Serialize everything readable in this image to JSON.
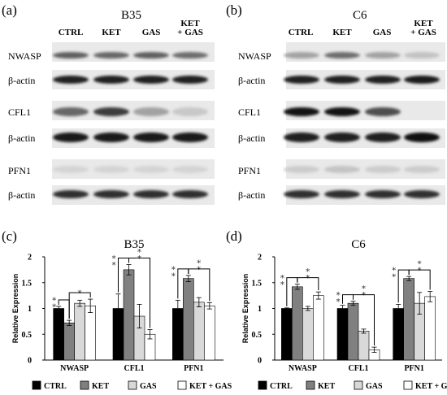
{
  "panels": {
    "a": {
      "letter": "(a)",
      "cell": "B35",
      "lanes": [
        "CTRL",
        "KET",
        "GAS",
        "KET\n+ GAS"
      ]
    },
    "b": {
      "letter": "(b)",
      "cell": "C6",
      "lanes": [
        "CTRL",
        "KET",
        "GAS",
        "KET\n+ GAS"
      ]
    },
    "c": {
      "letter": "(c)"
    },
    "d": {
      "letter": "(d)"
    }
  },
  "blot_rows": [
    "NWASP",
    "β-actin",
    "CFL1",
    "β-actin",
    "PFN1",
    "β-actin"
  ],
  "blot_bands": {
    "B35": [
      [
        0.62,
        0.58,
        0.62,
        0.55
      ],
      [
        0.92,
        0.92,
        0.92,
        0.92
      ],
      [
        0.58,
        0.78,
        0.3,
        0.12
      ],
      [
        0.95,
        0.95,
        0.95,
        0.95
      ],
      [
        0.06,
        0.06,
        0.06,
        0.06
      ],
      [
        0.85,
        0.85,
        0.85,
        0.85
      ]
    ],
    "C6": [
      [
        0.3,
        0.55,
        0.3,
        0.15
      ],
      [
        0.92,
        0.92,
        0.92,
        0.95
      ],
      [
        0.98,
        0.98,
        0.7,
        0.0
      ],
      [
        0.92,
        0.92,
        0.92,
        1.0
      ],
      [
        0.1,
        0.14,
        0.1,
        0.1
      ],
      [
        0.85,
        0.85,
        0.85,
        0.85
      ]
    ]
  },
  "colors": {
    "CTRL": "#000000",
    "KET": "#808080",
    "GAS": "#d9d9d9",
    "KET + GAS": "#ffffff"
  },
  "chart_data": [
    {
      "type": "bar",
      "title": "B35",
      "ylabel": "Relative Expression",
      "ylim": [
        0,
        2
      ],
      "yticks": [
        "0",
        "0.5",
        "1",
        "1.5",
        "2"
      ],
      "categories": [
        "NWASP",
        "CFL1",
        "PFN1"
      ],
      "series": [
        {
          "name": "CTRL",
          "values": [
            1.0,
            1.0,
            1.0
          ],
          "errors": [
            0.04,
            0.28,
            0.16
          ]
        },
        {
          "name": "KET",
          "values": [
            0.72,
            1.75,
            1.58
          ],
          "errors": [
            0.05,
            0.1,
            0.06
          ]
        },
        {
          "name": "GAS",
          "values": [
            1.1,
            0.85,
            1.12
          ],
          "errors": [
            0.06,
            0.23,
            0.09
          ]
        },
        {
          "name": "KET + GAS",
          "values": [
            1.05,
            0.5,
            1.05
          ],
          "errors": [
            0.13,
            0.09,
            0.06
          ]
        }
      ],
      "brackets": [
        {
          "category": 0,
          "from": 0,
          "to": 1,
          "stars": "∗\n∗"
        },
        {
          "category": 0,
          "from": 1,
          "to": 3,
          "stars": "∗"
        },
        {
          "category": 1,
          "from": 0,
          "to": 1,
          "stars": "∗\n∗"
        },
        {
          "category": 1,
          "from": 1,
          "to": 3,
          "stars": "∗\n∗"
        },
        {
          "category": 2,
          "from": 0,
          "to": 1,
          "stars": "∗\n∗"
        },
        {
          "category": 2,
          "from": 1,
          "to": 3,
          "stars": "∗\n∗"
        }
      ]
    },
    {
      "type": "bar",
      "title": "C6",
      "ylabel": "Relative Expression",
      "ylim": [
        0,
        2
      ],
      "yticks": [
        "0",
        "0.5",
        "1",
        "1.5",
        "2"
      ],
      "categories": [
        "NWASP",
        "CFL1",
        "PFN1"
      ],
      "series": [
        {
          "name": "CTRL",
          "values": [
            1.0,
            1.0,
            1.0
          ],
          "errors": [
            0.01,
            0.06,
            0.08
          ]
        },
        {
          "name": "KET",
          "values": [
            1.42,
            1.1,
            1.58
          ],
          "errors": [
            0.05,
            0.04,
            0.04
          ]
        },
        {
          "name": "GAS",
          "values": [
            1.0,
            0.56,
            1.1
          ],
          "errors": [
            0.04,
            0.04,
            0.21
          ]
        },
        {
          "name": "KET + GAS",
          "values": [
            1.25,
            0.2,
            1.23
          ],
          "errors": [
            0.07,
            0.05,
            0.1
          ]
        }
      ],
      "brackets": [
        {
          "category": 0,
          "from": 0,
          "to": 1,
          "stars": "∗\n∗"
        },
        {
          "category": 0,
          "from": 1,
          "to": 3,
          "stars": "∗\n∗"
        },
        {
          "category": 1,
          "from": 0,
          "to": 1,
          "stars": "∗\n∗"
        },
        {
          "category": 1,
          "from": 1,
          "to": 3,
          "stars": "∗\n∗"
        },
        {
          "category": 2,
          "from": 0,
          "to": 1,
          "stars": "∗\n∗"
        },
        {
          "category": 2,
          "from": 1,
          "to": 3,
          "stars": "∗\n∗"
        }
      ]
    }
  ]
}
